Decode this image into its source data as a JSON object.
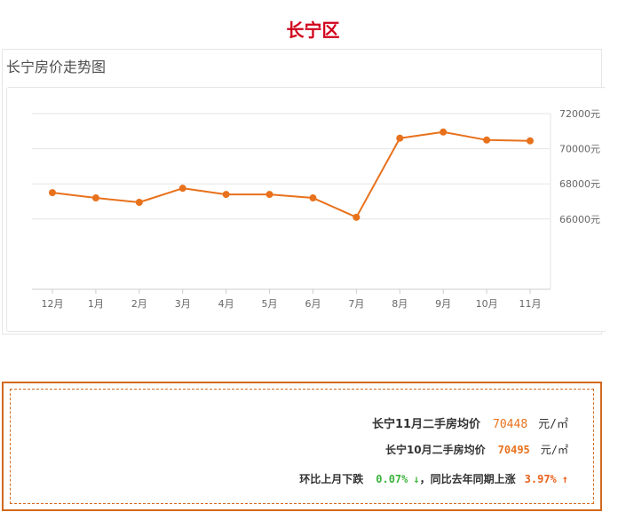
{
  "header": {
    "title": "长宁区"
  },
  "chart_card": {
    "heading": "长宁房价走势图"
  },
  "chart_data": {
    "type": "line",
    "title": "长宁房价走势图",
    "categories": [
      "12月",
      "1月",
      "2月",
      "3月",
      "4月",
      "5月",
      "6月",
      "7月",
      "8月",
      "9月",
      "10月",
      "11月"
    ],
    "series": [
      {
        "values": [
          67500,
          67200,
          66950,
          67750,
          67400,
          67400,
          67200,
          66100,
          70600,
          70950,
          70495,
          70448
        ]
      }
    ],
    "y_ticks": [
      66000,
      68000,
      70000,
      72000
    ],
    "y_tick_labels": [
      "66000元",
      "68000元",
      "70000元",
      "72000元"
    ],
    "ylim": [
      62000,
      72000
    ],
    "y_axis_position": "right",
    "grid": true,
    "line_color": "#e8711c",
    "grid_color": "#e6e6e6"
  },
  "summary": {
    "line1_label": "长宁11月二手房均价",
    "line1_value": "70448",
    "line1_unit": "元/㎡",
    "line2_label": "长宁10月二手房均价",
    "line2_value": "70495",
    "line2_unit": "元/㎡",
    "mom_label": "环比上月下跌",
    "mom_value": "0.07%",
    "mom_arrow": "↓",
    "separator": "，",
    "yoy_label": "同比去年同期上涨",
    "yoy_value": "3.97%",
    "yoy_arrow": "↑"
  },
  "colors": {
    "title_red": "#d0021b",
    "accent_orange": "#e8711c",
    "border_orange": "#d2691e",
    "down_green": "#3cb43c"
  }
}
